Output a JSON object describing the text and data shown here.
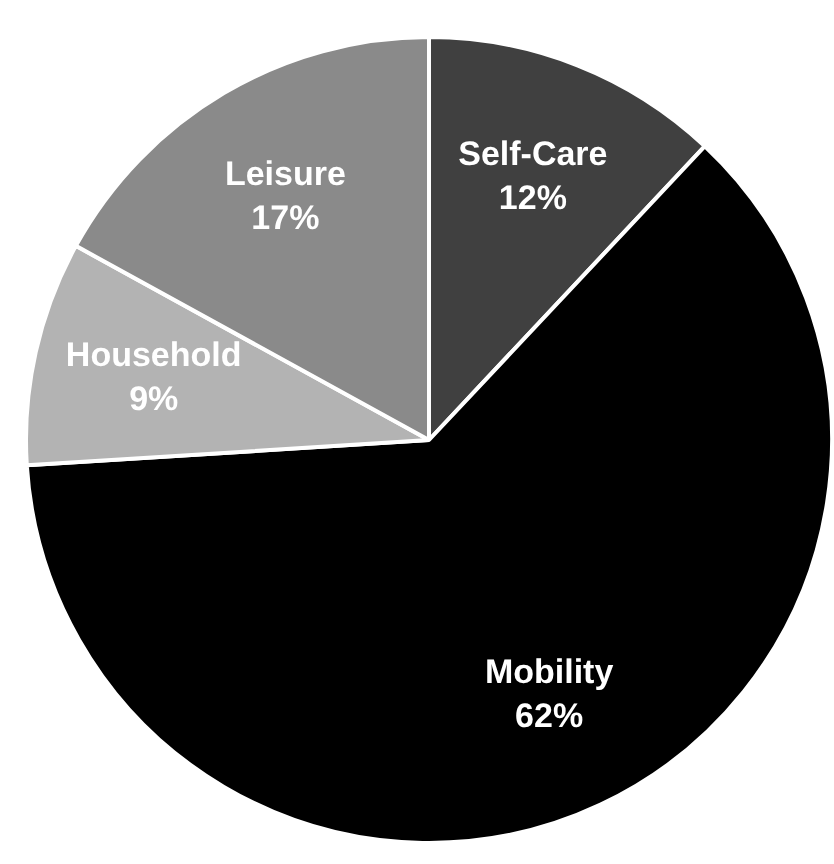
{
  "chart_data": {
    "type": "pie",
    "categories": [
      "Self-Care",
      "Mobility",
      "Household",
      "Leisure"
    ],
    "values": [
      12,
      62,
      9,
      17
    ],
    "value_labels": [
      "12%",
      "62%",
      "9%",
      "17%"
    ],
    "colors": [
      "#404040",
      "#000000",
      "#b3b3b3",
      "#8a8a8a"
    ],
    "legend": false
  }
}
